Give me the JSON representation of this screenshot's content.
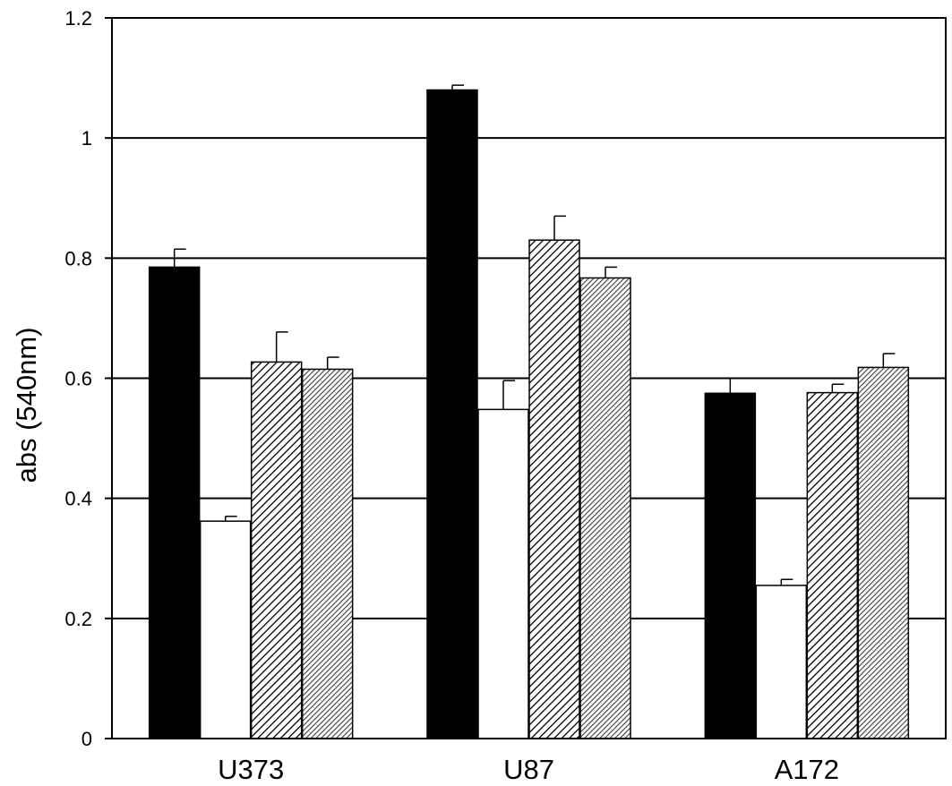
{
  "chart_data": {
    "type": "bar",
    "title": "",
    "xlabel": "",
    "ylabel": "abs (540nm)",
    "ylim": [
      0,
      1.2
    ],
    "yticks": [
      "0",
      "0.2",
      "0.4",
      "0.6",
      "0.8",
      "1",
      "1.2"
    ],
    "grid": "horizontal",
    "legend": "none",
    "categories": [
      "U373",
      "U87",
      "A172"
    ],
    "series": [
      {
        "fill": "solid-black",
        "values": [
          0.785,
          1.08,
          0.575
        ],
        "errors": [
          0.03,
          0.008,
          0.025
        ]
      },
      {
        "fill": "white",
        "values": [
          0.362,
          0.548,
          0.255
        ],
        "errors": [
          0.008,
          0.048,
          0.01
        ]
      },
      {
        "fill": "diagonal-hatch",
        "values": [
          0.627,
          0.83,
          0.576
        ],
        "errors": [
          0.05,
          0.04,
          0.014
        ]
      },
      {
        "fill": "dense-gray",
        "values": [
          0.615,
          0.767,
          0.618
        ],
        "errors": [
          0.02,
          0.018,
          0.023
        ]
      }
    ]
  }
}
